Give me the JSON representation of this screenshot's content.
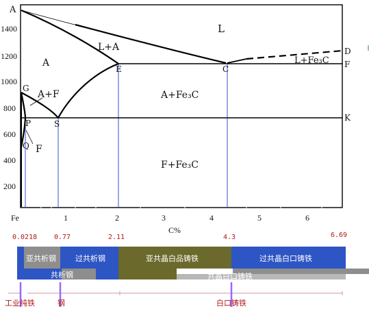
{
  "diagram": {
    "phase_labels": {
      "L": "L",
      "L_plus_A": "L+A",
      "A": "A",
      "A_plus_F": "A+F",
      "A_plus_Fe3C": "A+Fe₃C",
      "L_plus_Fe3C": "L+Fe₃C",
      "F_plus_Fe3C": "F+Fe₃C",
      "F": "F"
    },
    "point_labels": {
      "A": "A",
      "D": "D",
      "E": "E",
      "C": "C",
      "F": "F",
      "G": "G",
      "P": "P",
      "S": "S",
      "K": "K",
      "Q": "Q"
    },
    "y_ticks": [
      "1400",
      "1200",
      "1000",
      "800",
      "600",
      "400",
      "200"
    ],
    "x_ticks": [
      "Fe",
      "1",
      "2",
      "3",
      "4",
      "5",
      "6"
    ],
    "x_axis_label": "C%",
    "composition_marks": [
      "0.0218",
      "0.77",
      "2.11",
      "4.3",
      "6.69"
    ],
    "bars": {
      "hypoeutectoid_steel": "亚共析钢",
      "hypereutectoid_steel": "过共析钢",
      "hypoeutectic_white_iron": "亚共晶白品铸铁",
      "hypereutectic_white_iron": "过共晶白口铸铁",
      "eutectoid_steel": "共析钢",
      "eutectic_white_iron": "共晶白口铸铁"
    },
    "categories": {
      "industrial_iron": "工业纯铁",
      "steel": "钢",
      "white_cast_iron": "白口铸铁"
    },
    "colors": {
      "blue_bar": "#2e55c4",
      "gray_bar": "#8e8e8e",
      "olive_bar": "#6b6a2c",
      "guide_line": "#3355cc",
      "purple_marker": "#9966ff",
      "red_text": "#b01818"
    }
  }
}
